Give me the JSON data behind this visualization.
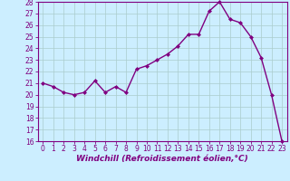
{
  "hours": [
    0,
    1,
    2,
    3,
    4,
    5,
    6,
    7,
    8,
    9,
    10,
    11,
    12,
    13,
    14,
    15,
    16,
    17,
    18,
    19,
    20,
    21,
    22,
    23
  ],
  "values": [
    21.0,
    20.7,
    20.2,
    20.0,
    20.2,
    21.2,
    20.2,
    20.7,
    20.2,
    22.2,
    22.5,
    23.0,
    23.5,
    24.2,
    25.2,
    25.2,
    27.2,
    28.0,
    26.5,
    26.2,
    25.0,
    23.2,
    20.0,
    16.0
  ],
  "line_color": "#800080",
  "marker": "D",
  "marker_size": 2.0,
  "bg_color": "#cceeff",
  "grid_color": "#aacccc",
  "xlabel": "Windchill (Refroidissement éolien,°C)",
  "ylim": [
    16,
    28
  ],
  "xlim_min": -0.5,
  "xlim_max": 23.5,
  "yticks": [
    16,
    17,
    18,
    19,
    20,
    21,
    22,
    23,
    24,
    25,
    26,
    27,
    28
  ],
  "xticks": [
    0,
    1,
    2,
    3,
    4,
    5,
    6,
    7,
    8,
    9,
    10,
    11,
    12,
    13,
    14,
    15,
    16,
    17,
    18,
    19,
    20,
    21,
    22,
    23
  ],
  "tick_fontsize": 5.5,
  "xlabel_fontsize": 6.5,
  "line_width": 1.0,
  "color": "#800080"
}
